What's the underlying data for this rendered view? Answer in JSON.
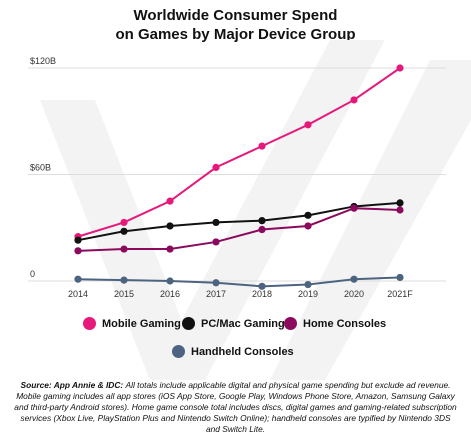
{
  "chart_data": {
    "type": "line",
    "title_line1": "Worldwide Consumer Spend",
    "title_line2": "on Games by Major Device Group",
    "categories": [
      "2014",
      "2015",
      "2016",
      "2017",
      "2018",
      "2019",
      "2020",
      "2021F"
    ],
    "y_tick_labels": [
      "$120B",
      "$60B",
      "0"
    ],
    "y_tick_values": [
      120,
      60,
      0
    ],
    "ylim": [
      0,
      120
    ],
    "grid": true,
    "legend_position": "bottom",
    "series": [
      {
        "name": "Mobile Gaming",
        "color": "#e6197a",
        "values": [
          25,
          33,
          45,
          64,
          76,
          88,
          102,
          120
        ]
      },
      {
        "name": "PC/Mac Gaming",
        "color": "#111111",
        "values": [
          23,
          28,
          31,
          33,
          34,
          37,
          42,
          44
        ]
      },
      {
        "name": "Home Consoles",
        "color": "#8c0a5e",
        "values": [
          17,
          18,
          18,
          22,
          29,
          31,
          41,
          40
        ]
      },
      {
        "name": "Handheld Consoles",
        "color": "#4d6480",
        "values": [
          1.0,
          0.5,
          0,
          -1,
          -3,
          -2,
          1.0,
          2
        ]
      }
    ]
  },
  "source": {
    "label": "Source: App Annie & IDC:",
    "text": "All totals include applicable digital and physical game spending but exclude ad revenue. Mobile gaming includes all app stores (iOS App Store, Google Play, Windows Phone Store, Amazon, Samsung Galaxy and third-party Android stores). Home game console total includes discs, digital games and gaming-related subscription services (Xbox Live, PlayStation Plus and Nintendo Switch Online); handheld consoles are typified by Nintendo 3DS and Switch Lite."
  },
  "colors": {
    "watermark": "#f3f3f3",
    "grid": "#dddddd"
  }
}
